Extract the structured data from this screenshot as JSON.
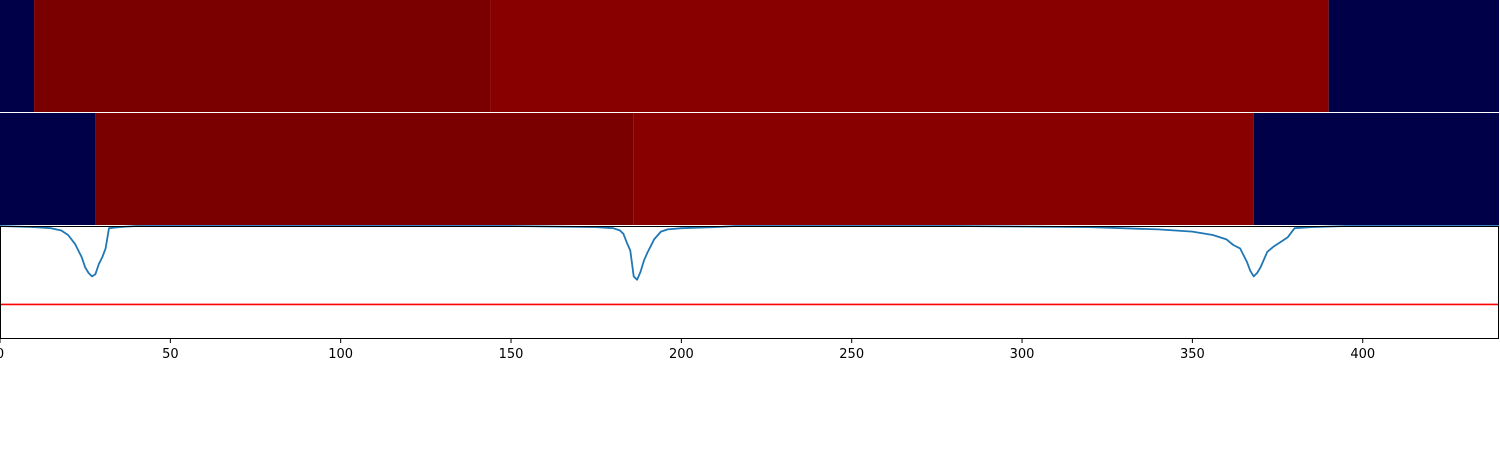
{
  "chart_data": {
    "type": "heatmap",
    "xlim": [
      0,
      440
    ],
    "xticks": [
      0,
      50,
      100,
      150,
      200,
      250,
      300,
      350,
      400
    ],
    "xtick_labels": [
      "0",
      "50",
      "100",
      "150",
      "200",
      "250",
      "300",
      "350",
      "400"
    ],
    "panels": [
      {
        "kind": "segments",
        "segments": [
          {
            "start": 0,
            "end": 10,
            "color": "#000048"
          },
          {
            "start": 10,
            "end": 144,
            "color": "#7a0000"
          },
          {
            "start": 144,
            "end": 390,
            "color": "#880000"
          },
          {
            "start": 390,
            "end": 440,
            "color": "#000048"
          }
        ]
      },
      {
        "kind": "segments",
        "segments": [
          {
            "start": 0,
            "end": 28,
            "color": "#000048"
          },
          {
            "start": 28,
            "end": 186,
            "color": "#7a0000"
          },
          {
            "start": 186,
            "end": 368,
            "color": "#880000"
          },
          {
            "start": 368,
            "end": 440,
            "color": "#000048"
          }
        ]
      },
      {
        "kind": "line",
        "ylim": [
          0,
          1
        ],
        "threshold": 0.3,
        "threshold_color": "#ff0000",
        "line_color": "#1f77b4",
        "series": {
          "x": [
            0,
            10,
            15,
            18,
            20,
            22,
            23,
            24,
            25,
            26,
            27,
            28,
            29,
            30,
            31,
            32,
            35,
            40,
            60,
            100,
            150,
            175,
            180,
            182,
            183,
            184,
            185,
            186,
            187,
            188,
            189,
            190,
            191,
            192,
            194,
            196,
            200,
            210,
            216,
            230,
            280,
            320,
            340,
            350,
            356,
            360,
            362,
            364,
            365,
            366,
            367,
            368,
            369,
            370,
            371,
            372,
            374,
            376,
            378,
            380,
            385,
            395,
            440
          ],
          "y": [
            1.0,
            0.99,
            0.98,
            0.96,
            0.92,
            0.84,
            0.78,
            0.72,
            0.63,
            0.58,
            0.55,
            0.57,
            0.66,
            0.72,
            0.8,
            0.98,
            0.99,
            1.0,
            1.0,
            1.0,
            1.0,
            0.99,
            0.98,
            0.96,
            0.93,
            0.85,
            0.78,
            0.55,
            0.52,
            0.59,
            0.69,
            0.76,
            0.82,
            0.88,
            0.95,
            0.97,
            0.98,
            0.99,
            1.0,
            1.0,
            1.0,
            0.99,
            0.97,
            0.95,
            0.92,
            0.88,
            0.83,
            0.8,
            0.74,
            0.68,
            0.6,
            0.55,
            0.58,
            0.63,
            0.7,
            0.77,
            0.82,
            0.86,
            0.9,
            0.98,
            0.99,
            1.0,
            1.0
          ]
        }
      }
    ]
  }
}
